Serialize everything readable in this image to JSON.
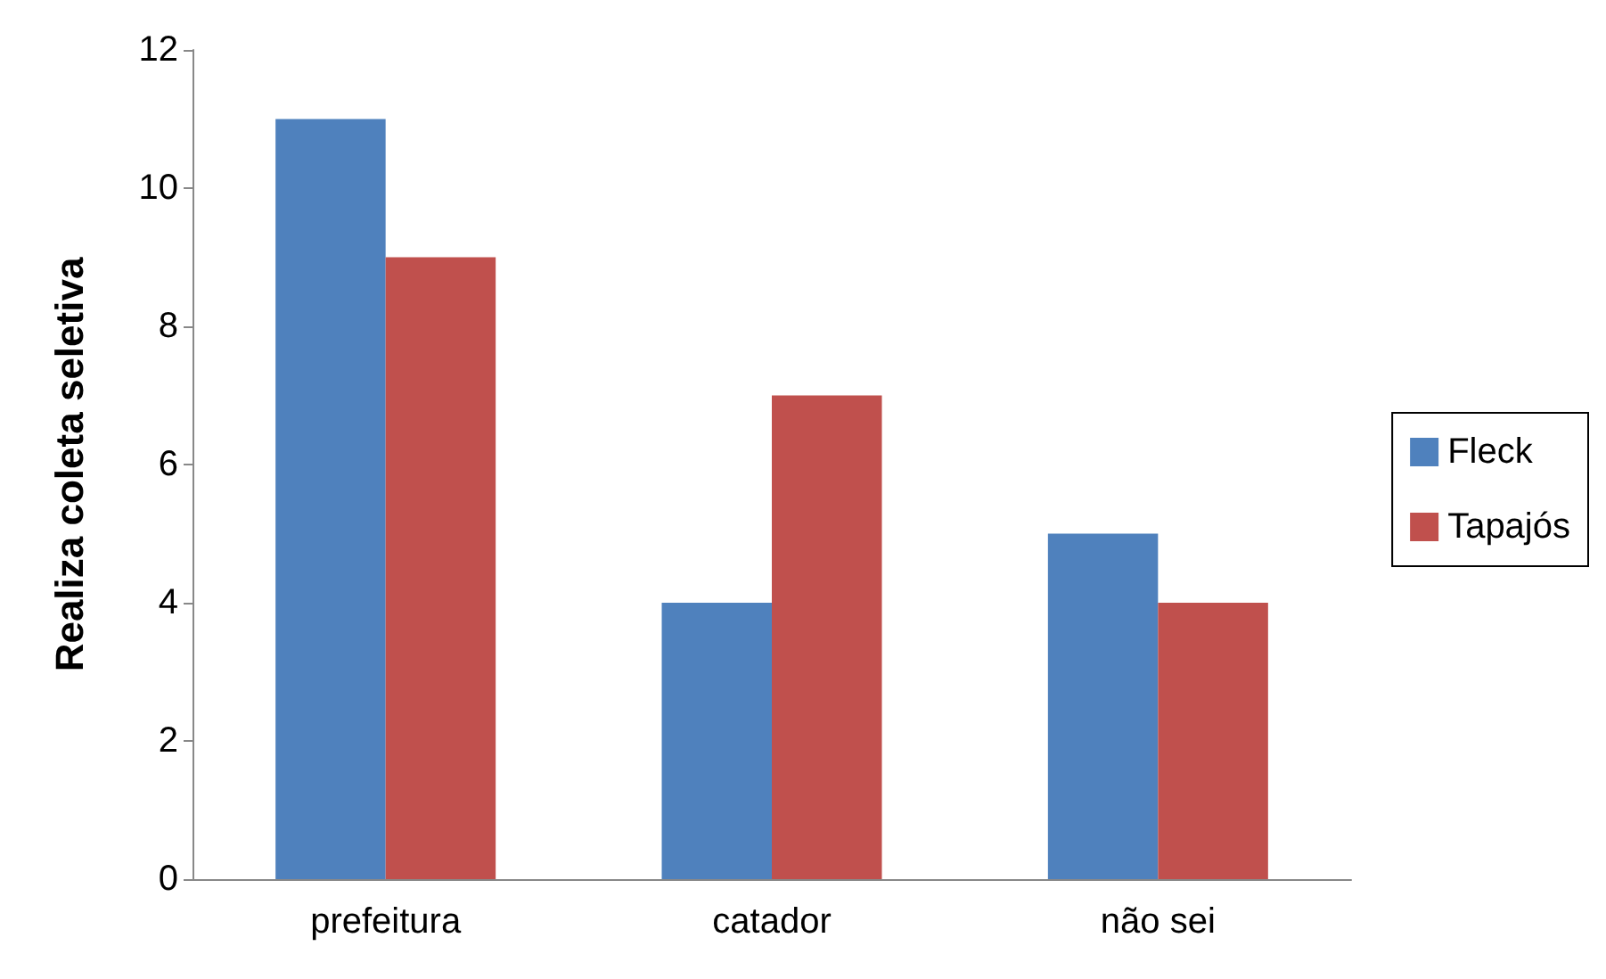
{
  "chart_data": {
    "type": "bar",
    "ylabel": "Realiza coleta seletiva",
    "categories": [
      "prefeitura",
      "catador",
      "não sei"
    ],
    "series": [
      {
        "name": "Fleck",
        "color": "#4f81bd",
        "values": [
          11,
          4,
          5
        ]
      },
      {
        "name": "Tapajós",
        "color": "#c0504d",
        "values": [
          9,
          7,
          4
        ]
      }
    ],
    "ylim": [
      0,
      12
    ],
    "yticks": [
      0,
      2,
      4,
      6,
      8,
      10,
      12
    ],
    "grid": false,
    "legend": "right"
  }
}
